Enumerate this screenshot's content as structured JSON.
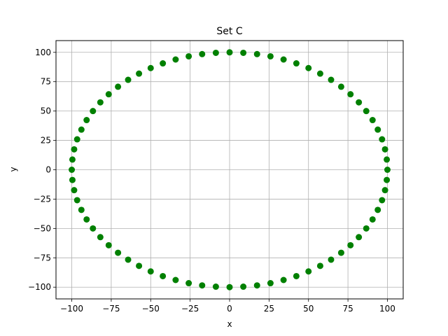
{
  "chart_data": {
    "type": "scatter",
    "title": "Set C",
    "xlabel": "x",
    "ylabel": "y",
    "xlim": [
      -110,
      110
    ],
    "ylim": [
      -110,
      110
    ],
    "xticks": [
      -100,
      -75,
      -50,
      -25,
      0,
      25,
      50,
      75,
      100
    ],
    "yticks": [
      -100,
      -75,
      -50,
      -25,
      0,
      25,
      50,
      75,
      100
    ],
    "grid": true,
    "marker_color": "#008000",
    "series": [
      {
        "x": [
          100.0,
          99.6,
          98.5,
          96.6,
          93.9,
          90.6,
          86.6,
          81.9,
          76.6,
          70.7,
          64.3,
          57.4,
          50.0,
          42.3,
          34.2,
          25.9,
          17.4,
          8.7,
          0.0,
          -8.7,
          -17.4,
          -25.9,
          -34.2,
          -42.3,
          -50.0,
          -57.4,
          -64.3,
          -70.7,
          -76.6,
          -81.9,
          -86.6,
          -90.6,
          -93.9,
          -96.6,
          -98.5,
          -99.6,
          -100.0,
          -99.6,
          -98.5,
          -96.6,
          -93.9,
          -90.6,
          -86.6,
          -81.9,
          -76.6,
          -70.7,
          -64.3,
          -57.4,
          -50.0,
          -42.3,
          -34.2,
          -25.9,
          -17.4,
          -8.7,
          0.0,
          8.7,
          17.4,
          25.9,
          34.2,
          42.3,
          50.0,
          57.4,
          64.3,
          70.7,
          76.6,
          81.9,
          86.6,
          90.6,
          93.9,
          96.6,
          98.5,
          99.6
        ],
        "y": [
          0.0,
          8.7,
          17.4,
          25.9,
          34.2,
          42.3,
          50.0,
          57.4,
          64.3,
          70.7,
          76.6,
          81.9,
          86.6,
          90.6,
          93.9,
          96.6,
          98.5,
          99.6,
          100.0,
          99.6,
          98.5,
          96.6,
          93.9,
          90.6,
          86.6,
          81.9,
          76.6,
          70.7,
          64.3,
          57.4,
          50.0,
          42.3,
          34.2,
          25.9,
          17.4,
          8.7,
          0.0,
          -8.7,
          -17.4,
          -25.9,
          -34.2,
          -42.3,
          -50.0,
          -57.4,
          -64.3,
          -70.7,
          -76.6,
          -81.9,
          -86.6,
          -90.6,
          -93.9,
          -96.6,
          -98.5,
          -99.6,
          -100.0,
          -99.6,
          -98.5,
          -96.6,
          -93.9,
          -90.6,
          -86.6,
          -81.9,
          -76.6,
          -70.7,
          -64.3,
          -57.4,
          -50.0,
          -42.3,
          -34.2,
          -25.9,
          -17.4,
          -8.7
        ]
      }
    ]
  }
}
